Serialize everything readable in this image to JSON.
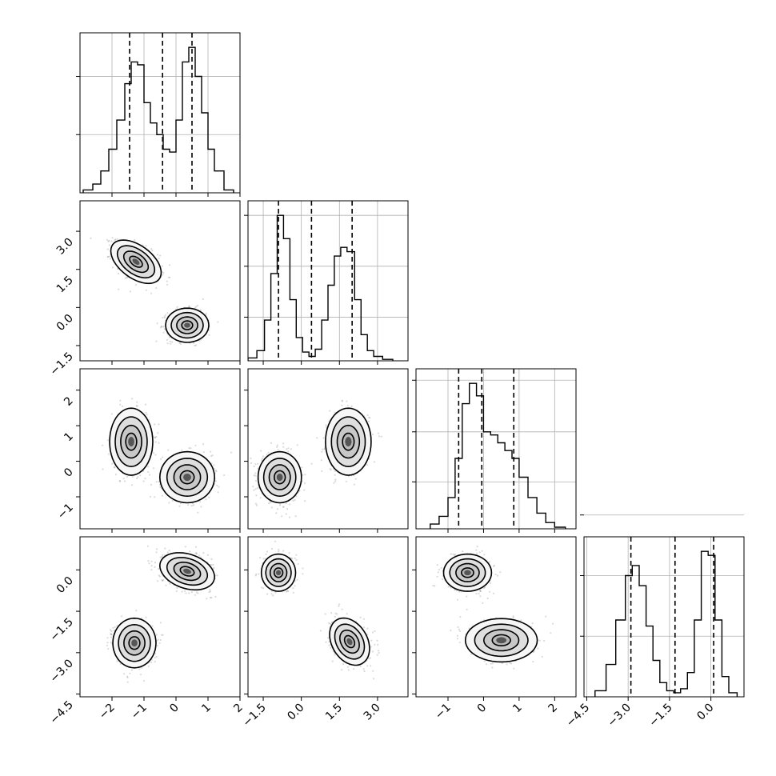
{
  "chart_data": {
    "type": "corner",
    "title": "",
    "parameters": [
      {
        "axis_label": "",
        "ticks": [
          -2,
          -1,
          0,
          1,
          2
        ],
        "tick_labels": [
          "−2",
          "−1",
          "0",
          "1",
          "2"
        ],
        "range": [
          -3.0,
          2.0
        ]
      },
      {
        "axis_label": "",
        "ticks": [
          -1.5,
          0.0,
          1.5,
          3.0
        ],
        "tick_labels": [
          "−1.5",
          "0.0",
          "1.5",
          "3.0"
        ],
        "range": [
          -2.1,
          4.2
        ]
      },
      {
        "axis_label": "",
        "ticks": [
          -1,
          0,
          1,
          2
        ],
        "tick_labels": [
          "−1",
          "0",
          "1",
          "2"
        ],
        "range": [
          -1.9,
          2.6
        ]
      },
      {
        "axis_label": "",
        "ticks": [
          -4.5,
          -3.0,
          -1.5,
          0.0
        ],
        "tick_labels": [
          "−4.5",
          "−3.0",
          "−1.5",
          "0.0"
        ],
        "range": [
          -4.6,
          1.2
        ]
      }
    ],
    "histograms": [
      {
        "quantiles": [
          -1.45,
          -0.42,
          0.5
        ],
        "bin_edges": [
          -2.9,
          -2.6,
          -2.35,
          -2.1,
          -1.85,
          -1.6,
          -1.4,
          -1.2,
          -1.0,
          -0.8,
          -0.6,
          -0.4,
          -0.2,
          0.0,
          0.2,
          0.4,
          0.6,
          0.8,
          1.0,
          1.2,
          1.5,
          1.8
        ],
        "counts": [
          0.02,
          0.06,
          0.15,
          0.3,
          0.5,
          0.75,
          0.9,
          0.88,
          0.62,
          0.48,
          0.4,
          0.3,
          0.28,
          0.5,
          0.9,
          1.0,
          0.8,
          0.55,
          0.3,
          0.15,
          0.02
        ],
        "y_ticks": [
          0.4,
          0.8
        ]
      },
      {
        "quantiles": [
          -0.9,
          0.4,
          2.0
        ],
        "bin_edges": [
          -2.1,
          -1.75,
          -1.45,
          -1.2,
          -0.95,
          -0.7,
          -0.45,
          -0.2,
          0.05,
          0.3,
          0.55,
          0.8,
          1.05,
          1.3,
          1.55,
          1.8,
          2.1,
          2.35,
          2.6,
          2.85,
          3.2,
          3.6
        ],
        "counts": [
          0.02,
          0.07,
          0.28,
          0.6,
          1.0,
          0.84,
          0.42,
          0.16,
          0.06,
          0.03,
          0.08,
          0.28,
          0.52,
          0.72,
          0.78,
          0.75,
          0.42,
          0.18,
          0.07,
          0.03,
          0.01
        ],
        "y_ticks": [
          0.3,
          0.65,
          1.0
        ]
      },
      {
        "quantiles": [
          -0.7,
          -0.05,
          0.85
        ],
        "bin_edges": [
          -1.5,
          -1.25,
          -1.0,
          -0.8,
          -0.6,
          -0.4,
          -0.2,
          0.0,
          0.2,
          0.4,
          0.6,
          0.8,
          1.0,
          1.25,
          1.5,
          1.75,
          2.0,
          2.3
        ],
        "counts": [
          0.03,
          0.08,
          0.2,
          0.45,
          0.8,
          0.93,
          0.85,
          0.62,
          0.6,
          0.55,
          0.5,
          0.45,
          0.33,
          0.2,
          0.1,
          0.04,
          0.01
        ],
        "y_ticks": [
          0.3,
          0.62,
          0.95
        ]
      },
      {
        "quantiles": [
          -2.9,
          -1.3,
          0.1
        ],
        "bin_edges": [
          -4.2,
          -3.8,
          -3.45,
          -3.1,
          -2.85,
          -2.6,
          -2.35,
          -2.1,
          -1.85,
          -1.6,
          -1.35,
          -1.1,
          -0.85,
          -0.6,
          -0.35,
          -0.1,
          0.15,
          0.4,
          0.65,
          0.95
        ],
        "counts": [
          0.03,
          0.16,
          0.38,
          0.6,
          0.65,
          0.55,
          0.35,
          0.18,
          0.07,
          0.03,
          0.02,
          0.04,
          0.12,
          0.38,
          0.72,
          0.7,
          0.38,
          0.1,
          0.02
        ],
        "y_ticks": [
          0.3,
          0.6,
          0.9
        ]
      }
    ],
    "density_2d": [
      {
        "row": 1,
        "col": 0,
        "modes": [
          {
            "mean": [
              -1.25,
              1.8
            ],
            "sd": [
              0.35,
              0.38
            ],
            "rho": -0.5,
            "weight": 0.5
          },
          {
            "mean": [
              0.35,
              -0.7
            ],
            "sd": [
              0.3,
              0.3
            ],
            "rho": 0.0,
            "weight": 0.5
          }
        ]
      },
      {
        "row": 2,
        "col": 0,
        "modes": [
          {
            "mean": [
              -1.4,
              0.55
            ],
            "sd": [
              0.3,
              0.42
            ],
            "rho": 0.0,
            "weight": 0.5
          },
          {
            "mean": [
              0.35,
              -0.45
            ],
            "sd": [
              0.38,
              0.32
            ],
            "rho": 0.0,
            "weight": 0.5
          }
        ]
      },
      {
        "row": 2,
        "col": 1,
        "modes": [
          {
            "mean": [
              -0.85,
              -0.45
            ],
            "sd": [
              0.38,
              0.32
            ],
            "rho": 0.0,
            "weight": 0.5
          },
          {
            "mean": [
              1.85,
              0.55
            ],
            "sd": [
              0.4,
              0.42
            ],
            "rho": 0.0,
            "weight": 0.5
          }
        ]
      },
      {
        "row": 3,
        "col": 0,
        "modes": [
          {
            "mean": [
              0.35,
              -0.05
            ],
            "sd": [
              0.38,
              0.3
            ],
            "rho": -0.3,
            "weight": 0.5
          },
          {
            "mean": [
              -1.3,
              -2.65
            ],
            "sd": [
              0.3,
              0.4
            ],
            "rho": 0.0,
            "weight": 0.5
          }
        ]
      },
      {
        "row": 3,
        "col": 1,
        "modes": [
          {
            "mean": [
              -0.9,
              -0.1
            ],
            "sd": [
              0.3,
              0.3
            ],
            "rho": 0.0,
            "weight": 0.5
          },
          {
            "mean": [
              1.9,
              -2.6
            ],
            "sd": [
              0.35,
              0.38
            ],
            "rho": -0.3,
            "weight": 0.5
          }
        ]
      },
      {
        "row": 3,
        "col": 2,
        "modes": [
          {
            "mean": [
              -0.45,
              -0.1
            ],
            "sd": [
              0.3,
              0.3
            ],
            "rho": 0.0,
            "weight": 0.5
          },
          {
            "mean": [
              0.5,
              -2.55
            ],
            "sd": [
              0.45,
              0.35
            ],
            "rho": 0.0,
            "weight": 0.5
          }
        ]
      }
    ],
    "contour_levels": [
      0.85,
      0.55,
      0.25,
      0.08
    ],
    "grid": true,
    "legend": false
  }
}
